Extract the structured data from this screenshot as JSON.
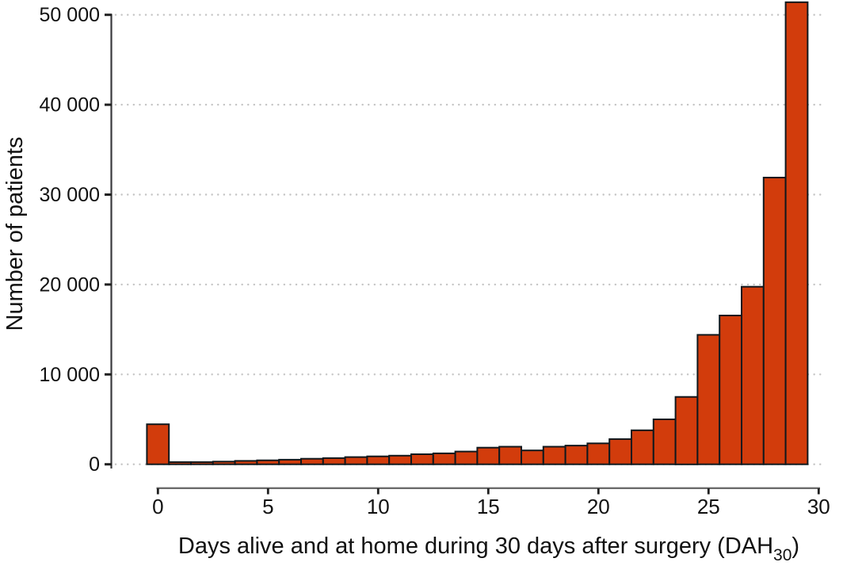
{
  "chart_data": {
    "type": "bar",
    "subtype": "histogram",
    "title": "",
    "ylabel": "Number of patients",
    "xlabel": "Days alive and at home during 30 days after surgery (DAH30)",
    "xlabel_main": "Days alive and at home during 30 days after surgery (DAH",
    "xlabel_subscript": "30",
    "xlabel_suffix": ")",
    "categories": [
      0,
      1,
      2,
      3,
      4,
      5,
      6,
      7,
      8,
      9,
      10,
      11,
      12,
      13,
      14,
      15,
      16,
      17,
      18,
      19,
      20,
      21,
      22,
      23,
      24,
      25,
      26,
      27,
      28,
      29
    ],
    "values": [
      4450,
      250,
      250,
      300,
      380,
      440,
      510,
      620,
      690,
      800,
      880,
      960,
      1120,
      1220,
      1420,
      1850,
      1960,
      1540,
      1960,
      2080,
      2330,
      2800,
      3780,
      5000,
      7500,
      14400,
      16550,
      19750,
      31900,
      51400
    ],
    "bin_width": 1,
    "x_ticks": [
      0,
      5,
      10,
      15,
      20,
      25,
      30
    ],
    "x_tick_labels": [
      "0",
      "5",
      "10",
      "15",
      "20",
      "25",
      "30"
    ],
    "y_ticks": [
      0,
      10000,
      20000,
      30000,
      40000,
      50000
    ],
    "y_tick_labels": [
      "0",
      "10 000",
      "20 000",
      "30 000",
      "40 000",
      "50 000"
    ],
    "xlim": [
      -0.5,
      30.5
    ],
    "ylim": [
      0,
      52000
    ],
    "grid": "horizontal-dotted",
    "legend": "none",
    "colors": {
      "bar_fill": "#d23c0c",
      "bar_edge": "#10181d",
      "gridline": "#c4c4c4",
      "y_axis": "#3a3a3c",
      "x_axis": "#6b6b6b",
      "tick": "#1f1f1f",
      "text": "#111111"
    }
  }
}
